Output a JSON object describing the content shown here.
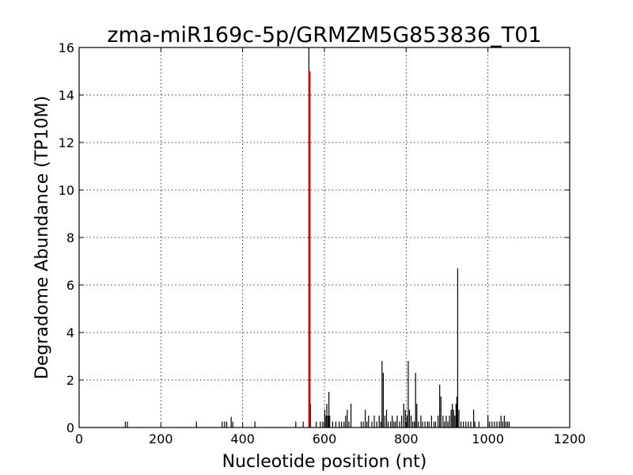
{
  "chart_data": {
    "type": "bar",
    "title": "zma-miR169c-5p/GRMZM5G853836_T01",
    "xlabel": "Nucleotide position (nt)",
    "ylabel": "Degradome Abundance (TP10M)",
    "xlim": [
      0,
      1200
    ],
    "ylim": [
      0,
      16
    ],
    "xticks": [
      0,
      200,
      400,
      600,
      800,
      1000,
      1200
    ],
    "yticks": [
      0,
      2,
      4,
      6,
      8,
      10,
      12,
      14,
      16
    ],
    "grid": true,
    "colors": {
      "bars": "#000000",
      "highlight": "#ff0000"
    },
    "highlight": {
      "x": 564,
      "y": 15
    },
    "series": [
      {
        "values": [
          [
            113,
            0.25
          ],
          [
            118,
            0.25
          ],
          [
            287,
            0.25
          ],
          [
            350,
            0.25
          ],
          [
            356,
            0.25
          ],
          [
            361,
            0.25
          ],
          [
            372,
            0.45
          ],
          [
            376,
            0.25
          ],
          [
            430,
            0.25
          ],
          [
            530,
            0.25
          ],
          [
            548,
            0.25
          ],
          [
            562,
            16
          ],
          [
            566,
            1.0
          ],
          [
            580,
            0.25
          ],
          [
            590,
            0.25
          ],
          [
            596,
            0.25
          ],
          [
            601,
            0.75
          ],
          [
            604,
            0.5
          ],
          [
            606,
            1.0
          ],
          [
            609,
            0.5
          ],
          [
            611,
            1.5
          ],
          [
            613,
            0.5
          ],
          [
            620,
            0.25
          ],
          [
            628,
            0.25
          ],
          [
            636,
            0.25
          ],
          [
            642,
            0.25
          ],
          [
            648,
            0.25
          ],
          [
            652,
            0.5
          ],
          [
            656,
            0.75
          ],
          [
            660,
            0.25
          ],
          [
            665,
            1.0
          ],
          [
            690,
            0.25
          ],
          [
            695,
            0.25
          ],
          [
            700,
            0.75
          ],
          [
            704,
            0.25
          ],
          [
            708,
            0.5
          ],
          [
            716,
            0.25
          ],
          [
            722,
            0.5
          ],
          [
            728,
            0.25
          ],
          [
            734,
            0.5
          ],
          [
            738,
            0.25
          ],
          [
            741,
            2.8
          ],
          [
            744,
            2.3
          ],
          [
            748,
            0.5
          ],
          [
            752,
            0.75
          ],
          [
            756,
            0.25
          ],
          [
            762,
            0.25
          ],
          [
            766,
            0.5
          ],
          [
            770,
            0.25
          ],
          [
            774,
            0.25
          ],
          [
            778,
            0.5
          ],
          [
            784,
            0.25
          ],
          [
            789,
            0.5
          ],
          [
            794,
            1.0
          ],
          [
            798,
            0.75
          ],
          [
            802,
            0.5
          ],
          [
            805,
            2.8
          ],
          [
            808,
            0.75
          ],
          [
            812,
            0.5
          ],
          [
            816,
            0.25
          ],
          [
            820,
            0.25
          ],
          [
            823,
            2.3
          ],
          [
            826,
            1.0
          ],
          [
            830,
            0.25
          ],
          [
            836,
            0.5
          ],
          [
            840,
            0.25
          ],
          [
            846,
            0.25
          ],
          [
            852,
            0.25
          ],
          [
            856,
            0.25
          ],
          [
            862,
            0.5
          ],
          [
            868,
            0.25
          ],
          [
            872,
            0.25
          ],
          [
            878,
            0.5
          ],
          [
            882,
            1.8
          ],
          [
            885,
            1.3
          ],
          [
            890,
            0.5
          ],
          [
            894,
            0.25
          ],
          [
            898,
            0.5
          ],
          [
            902,
            0.25
          ],
          [
            906,
            0.5
          ],
          [
            910,
            0.75
          ],
          [
            913,
            1.0
          ],
          [
            916,
            0.75
          ],
          [
            919,
            0.5
          ],
          [
            922,
            1.0
          ],
          [
            924,
            1.3
          ],
          [
            926,
            6.7
          ],
          [
            929,
            0.75
          ],
          [
            934,
            0.25
          ],
          [
            940,
            0.25
          ],
          [
            946,
            0.25
          ],
          [
            952,
            0.25
          ],
          [
            958,
            0.25
          ],
          [
            965,
            0.75
          ],
          [
            968,
            0.25
          ],
          [
            978,
            0.25
          ],
          [
            1000,
            0.5
          ],
          [
            1004,
            0.25
          ],
          [
            1010,
            0.25
          ],
          [
            1016,
            0.25
          ],
          [
            1022,
            0.25
          ],
          [
            1028,
            0.25
          ],
          [
            1032,
            0.5
          ],
          [
            1036,
            0.25
          ],
          [
            1040,
            0.5
          ],
          [
            1044,
            0.25
          ],
          [
            1048,
            0.25
          ],
          [
            1052,
            0.25
          ]
        ]
      }
    ]
  }
}
